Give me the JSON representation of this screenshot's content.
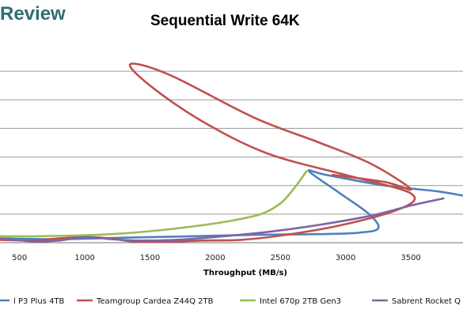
{
  "header": {
    "logo_text": "Review",
    "title": "Sequential Write 64K"
  },
  "chart_data": {
    "type": "line",
    "title": "Sequential Write 64K",
    "xlabel": "Throughput (MB/s)",
    "ylabel": "",
    "xlim": [
      350,
      3900
    ],
    "ylim": [
      0,
      280
    ],
    "x_ticks": [
      500,
      1000,
      1500,
      2000,
      2500,
      3000,
      3500
    ],
    "y_gridlines": [
      40,
      80,
      120,
      160,
      200,
      240
    ],
    "grid": "horizontal",
    "legend_position": "bottom",
    "series": [
      {
        "name": "l P3 Plus 4TB",
        "color": "#4f81bd",
        "points": [
          [
            350,
            6
          ],
          [
            800,
            5
          ],
          [
            1300,
            7
          ],
          [
            1800,
            9
          ],
          [
            2300,
            11
          ],
          [
            2800,
            12
          ],
          [
            3100,
            14
          ],
          [
            3250,
            20
          ],
          [
            3180,
            40
          ],
          [
            2950,
            70
          ],
          [
            2720,
            100
          ],
          [
            2850,
            95
          ],
          [
            3300,
            80
          ],
          [
            3700,
            72
          ],
          [
            3900,
            66
          ]
        ]
      },
      {
        "name": "Teamgroup Cardea Z44Q 2TB",
        "color": "#c0504d",
        "points": [
          [
            350,
            4
          ],
          [
            600,
            3
          ],
          [
            800,
            6
          ],
          [
            1000,
            8
          ],
          [
            1200,
            6
          ],
          [
            1350,
            2
          ],
          [
            1600,
            1
          ],
          [
            1900,
            3
          ],
          [
            2200,
            4
          ],
          [
            2500,
            10
          ],
          [
            2900,
            22
          ],
          [
            3300,
            40
          ],
          [
            3500,
            55
          ],
          [
            3520,
            66
          ],
          [
            3400,
            76
          ],
          [
            3000,
            95
          ],
          [
            2400,
            125
          ],
          [
            1900,
            170
          ],
          [
            1500,
            220
          ],
          [
            1350,
            250
          ],
          [
            1650,
            235
          ],
          [
            2300,
            175
          ],
          [
            2800,
            140
          ],
          [
            3200,
            110
          ],
          [
            3500,
            75
          ],
          [
            3300,
            85
          ],
          [
            2900,
            95
          ]
        ]
      },
      {
        "name": "Intel 670p 2TB Gen3",
        "color": "#9bbb59",
        "points": [
          [
            350,
            9
          ],
          [
            600,
            9
          ],
          [
            900,
            10
          ],
          [
            1200,
            12
          ],
          [
            1500,
            16
          ],
          [
            1800,
            22
          ],
          [
            2100,
            30
          ],
          [
            2350,
            40
          ],
          [
            2500,
            55
          ],
          [
            2600,
            75
          ],
          [
            2700,
            100
          ]
        ]
      },
      {
        "name": "Sabrent Rocket Q",
        "color": "#8064a2",
        "points": [
          [
            350,
            6
          ],
          [
            600,
            2
          ],
          [
            800,
            3
          ],
          [
            1000,
            8
          ],
          [
            1200,
            5
          ],
          [
            1400,
            3
          ],
          [
            1700,
            4
          ],
          [
            2000,
            8
          ],
          [
            2400,
            15
          ],
          [
            2800,
            25
          ],
          [
            3200,
            38
          ],
          [
            3500,
            52
          ],
          [
            3750,
            62
          ]
        ]
      }
    ]
  }
}
